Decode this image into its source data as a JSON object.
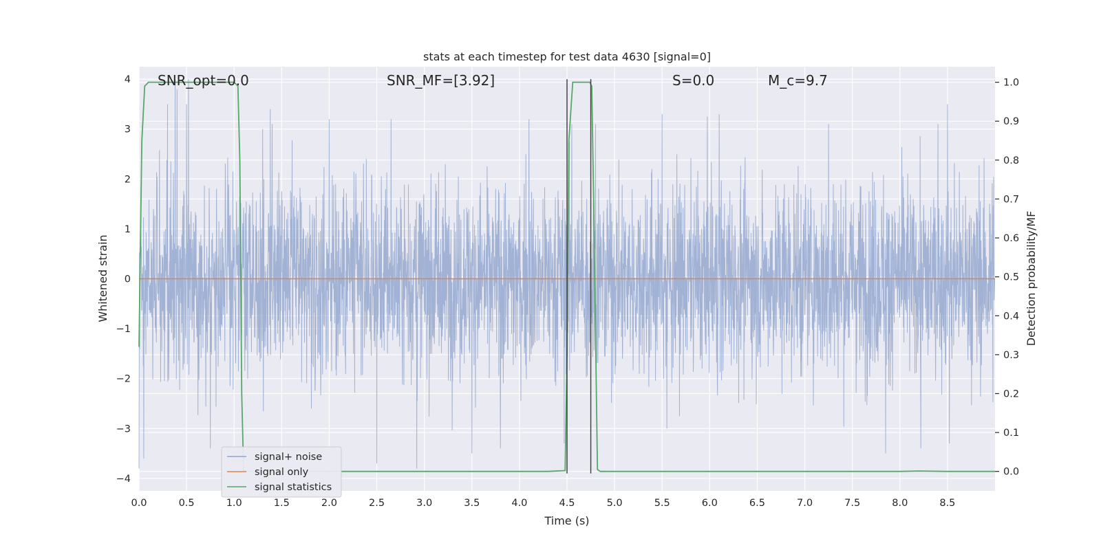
{
  "chart_data": {
    "type": "line",
    "title": "stats at each timestep for test data 4630 [signal=0]",
    "xlabel": "Time (s)",
    "ylabel": "Whitened strain",
    "y2label": "Detection probability/MF",
    "xlim": [
      0.0,
      9.0
    ],
    "ylim": [
      -4.25,
      4.25
    ],
    "y2lim": [
      -0.05,
      1.04
    ],
    "xticks": [
      0.0,
      0.5,
      1.0,
      1.5,
      2.0,
      2.5,
      3.0,
      3.5,
      4.0,
      4.5,
      5.0,
      5.5,
      6.0,
      6.5,
      7.0,
      7.5,
      8.0,
      8.5
    ],
    "xtick_labels": [
      "0.0",
      "0.5",
      "1.0",
      "1.5",
      "2.0",
      "2.5",
      "3.0",
      "3.5",
      "4.0",
      "4.5",
      "5.0",
      "5.5",
      "6.0",
      "6.5",
      "7.0",
      "7.5",
      "8.0",
      "8.5"
    ],
    "yticks": [
      -4,
      -3,
      -2,
      -1,
      0,
      1,
      2,
      3,
      4
    ],
    "ytick_labels": [
      "−4",
      "−3",
      "−2",
      "−1",
      "0",
      "1",
      "2",
      "3",
      "4"
    ],
    "y2ticks": [
      0.0,
      0.1,
      0.2,
      0.3,
      0.4,
      0.5,
      0.6,
      0.7,
      0.8,
      0.9,
      1.0
    ],
    "y2tick_labels": [
      "0.0",
      "0.1",
      "0.2",
      "0.3",
      "0.4",
      "0.5",
      "0.6",
      "0.7",
      "0.8",
      "0.9",
      "1.0"
    ],
    "grid": true,
    "legend_position": "lower-left",
    "annotations": [
      {
        "text": "SNR_opt=0.0",
        "x": 0.2,
        "y": 4.0
      },
      {
        "text": "SNR_MF=[3.92]",
        "x": 2.6,
        "y": 4.0
      },
      {
        "text": "S=0.0",
        "x": 5.6,
        "y": 4.0
      },
      {
        "text": "M_c=9.7",
        "x": 6.6,
        "y": 4.0
      }
    ],
    "vlines": [
      {
        "x": 4.5,
        "y_from": -3.9,
        "y_to": 4.0
      },
      {
        "x": 4.75,
        "y_from": -3.9,
        "y_to": 4.0
      }
    ],
    "series": [
      {
        "name": "signal+ noise",
        "axis": "left",
        "color": "#8ea4cc",
        "opacity": 0.8,
        "description": "whitened noise, roughly Gaussian, amplitude mostly within ±2, peaks near ±3.9",
        "sample_rate": 400,
        "peak_points": [
          {
            "x": 0.0,
            "y": -3.8
          },
          {
            "x": 0.05,
            "y": -3.6
          },
          {
            "x": 0.3,
            "y": 3.5
          },
          {
            "x": 0.38,
            "y": 4.0
          },
          {
            "x": 0.4,
            "y": 3.8
          },
          {
            "x": 0.5,
            "y": 3.5
          },
          {
            "x": 0.52,
            "y": 4.0
          },
          {
            "x": 0.75,
            "y": -3.4
          },
          {
            "x": 1.3,
            "y": 3.0
          },
          {
            "x": 1.38,
            "y": 3.4
          },
          {
            "x": 1.4,
            "y": 3.1
          },
          {
            "x": 2.0,
            "y": 3.2
          },
          {
            "x": 2.5,
            "y": 3.2
          },
          {
            "x": 2.5,
            "y": -3.7
          },
          {
            "x": 2.65,
            "y": 3.2
          },
          {
            "x": 2.92,
            "y": -3.8
          },
          {
            "x": 3.5,
            "y": -3.5
          },
          {
            "x": 3.8,
            "y": -3.4
          },
          {
            "x": 4.1,
            "y": 3.2
          },
          {
            "x": 4.47,
            "y": -3.3
          },
          {
            "x": 4.55,
            "y": 3.1
          },
          {
            "x": 4.8,
            "y": 3.1
          },
          {
            "x": 5.5,
            "y": 3.3
          },
          {
            "x": 5.55,
            "y": -3.0
          },
          {
            "x": 6.1,
            "y": 3.3
          },
          {
            "x": 7.25,
            "y": 3.1
          },
          {
            "x": 7.85,
            "y": -3.5
          },
          {
            "x": 8.22,
            "y": -3.4
          },
          {
            "x": 8.4,
            "y": 3.1
          },
          {
            "x": 8.5,
            "y": 3.5
          },
          {
            "x": 8.52,
            "y": -3.3
          }
        ]
      },
      {
        "name": "signal only",
        "axis": "left",
        "color": "#dd8452",
        "x": [
          0.0,
          9.0
        ],
        "y": [
          0.0,
          0.0
        ]
      },
      {
        "name": "signal statistics",
        "axis": "right",
        "color": "#55a868",
        "x": [
          0.0,
          0.03,
          0.06,
          0.1,
          0.2,
          0.4,
          0.6,
          0.8,
          1.0,
          1.04,
          1.06,
          1.08,
          1.1,
          1.12,
          1.2,
          1.5,
          2.0,
          2.5,
          3.0,
          3.5,
          4.0,
          4.3,
          4.48,
          4.5,
          4.52,
          4.56,
          4.6,
          4.7,
          4.74,
          4.76,
          4.78,
          4.82,
          4.85,
          5.0,
          5.5,
          6.0,
          6.5,
          7.0,
          7.5,
          8.0,
          8.2,
          8.5,
          8.8,
          9.0
        ],
        "y": [
          0.32,
          0.85,
          0.99,
          1.0,
          1.0,
          1.0,
          1.0,
          1.0,
          1.0,
          0.99,
          0.8,
          0.2,
          0.0,
          0.0,
          0.0,
          0.0,
          0.0,
          0.0,
          0.0,
          0.0,
          0.0,
          0.0,
          0.002,
          0.3,
          0.85,
          1.0,
          1.0,
          1.0,
          1.0,
          0.99,
          0.7,
          0.005,
          0.0,
          0.0,
          0.0,
          0.0,
          0.0,
          0.0,
          0.0,
          0.0,
          0.001,
          0.0,
          0.0,
          0.0
        ]
      }
    ]
  }
}
